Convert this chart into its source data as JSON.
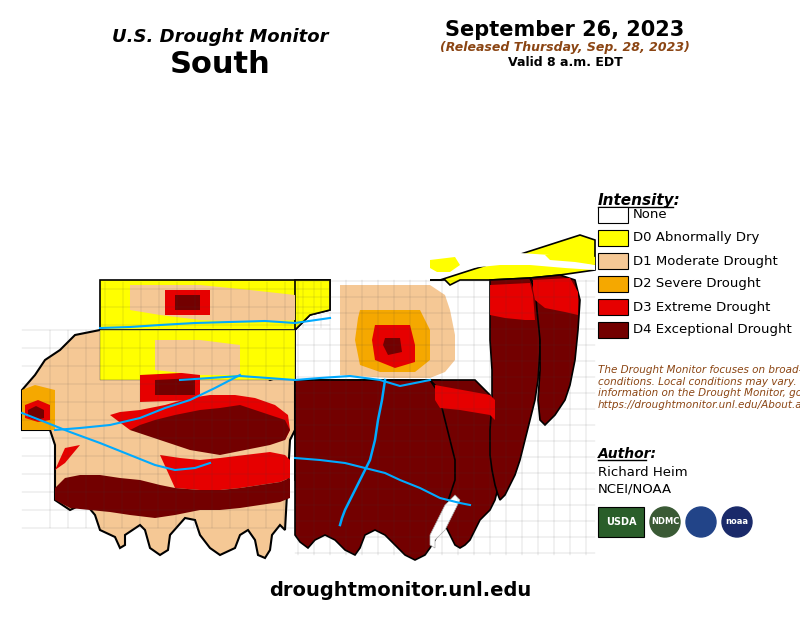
{
  "title_line1": "U.S. Drought Monitor",
  "title_line2": "South",
  "date_line1": "September 26, 2023",
  "date_line2": "(Released Thursday, Sep. 28, 2023)",
  "date_line3": "Valid 8 a.m. EDT",
  "legend_title": "Intensity:",
  "legend_items": [
    {
      "label": "None",
      "color": "#ffffff",
      "edgecolor": "#000000"
    },
    {
      "label": "D0 Abnormally Dry",
      "color": "#ffff00",
      "edgecolor": "#000000"
    },
    {
      "label": "D1 Moderate Drought",
      "color": "#f5c895",
      "edgecolor": "#000000"
    },
    {
      "label": "D2 Severe Drought",
      "color": "#f5a800",
      "edgecolor": "#000000"
    },
    {
      "label": "D3 Extreme Drought",
      "color": "#e60000",
      "edgecolor": "#000000"
    },
    {
      "label": "D4 Exceptional Drought",
      "color": "#730000",
      "edgecolor": "#000000"
    }
  ],
  "disclaimer_text": "The Drought Monitor focuses on broad-scale\nconditions. Local conditions may vary. For more\ninformation on the Drought Monitor, go to\nhttps://droughtmonitor.unl.edu/About.aspx",
  "author_label": "Author:",
  "author_name": "Richard Heim",
  "author_org": "NCEI/NOAA",
  "website": "droughtmonitor.unl.edu",
  "bg_color": "#ffffff",
  "river_color": "#00aaff",
  "border_color": "#000000"
}
